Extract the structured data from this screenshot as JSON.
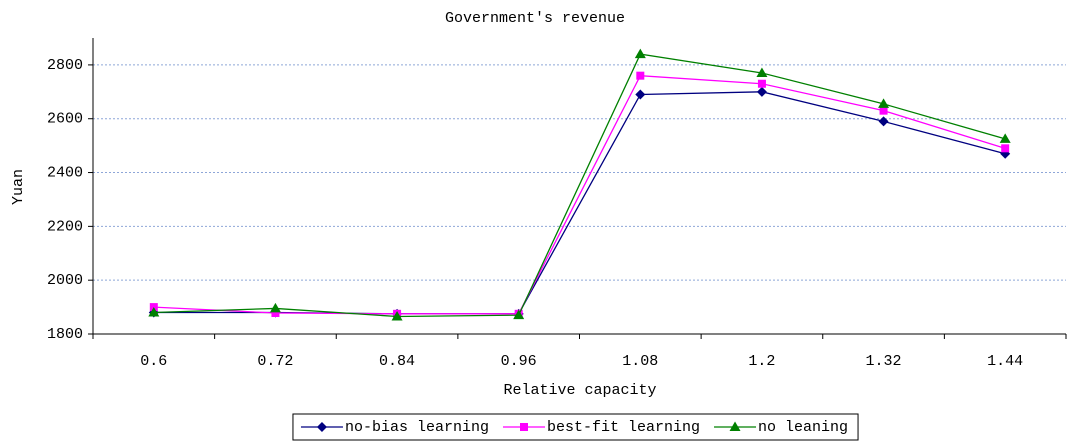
{
  "chart_data": {
    "type": "line",
    "title": "Government's revenue",
    "xlabel": "Relative capacity",
    "ylabel": "Yuan",
    "categories": [
      "0.6",
      "0.72",
      "0.84",
      "0.96",
      "1.08",
      "1.2",
      "1.32",
      "1.44"
    ],
    "series": [
      {
        "name": "no-bias learning",
        "color": "#000080",
        "marker": "diamond",
        "values": [
          1880,
          1880,
          1875,
          1875,
          2690,
          2700,
          2590,
          2470
        ]
      },
      {
        "name": "best-fit learning",
        "color": "#ff00ff",
        "marker": "square",
        "values": [
          1900,
          1878,
          1875,
          1875,
          2760,
          2730,
          2630,
          2490
        ]
      },
      {
        "name": "no leaning",
        "color": "#008000",
        "marker": "triangle",
        "values": [
          1880,
          1895,
          1865,
          1870,
          2840,
          2770,
          2655,
          2525
        ]
      }
    ],
    "ylim": [
      1800,
      2900
    ],
    "yticks": [
      1800,
      2000,
      2200,
      2400,
      2600,
      2800
    ],
    "grid": true,
    "legend": "bottom"
  }
}
